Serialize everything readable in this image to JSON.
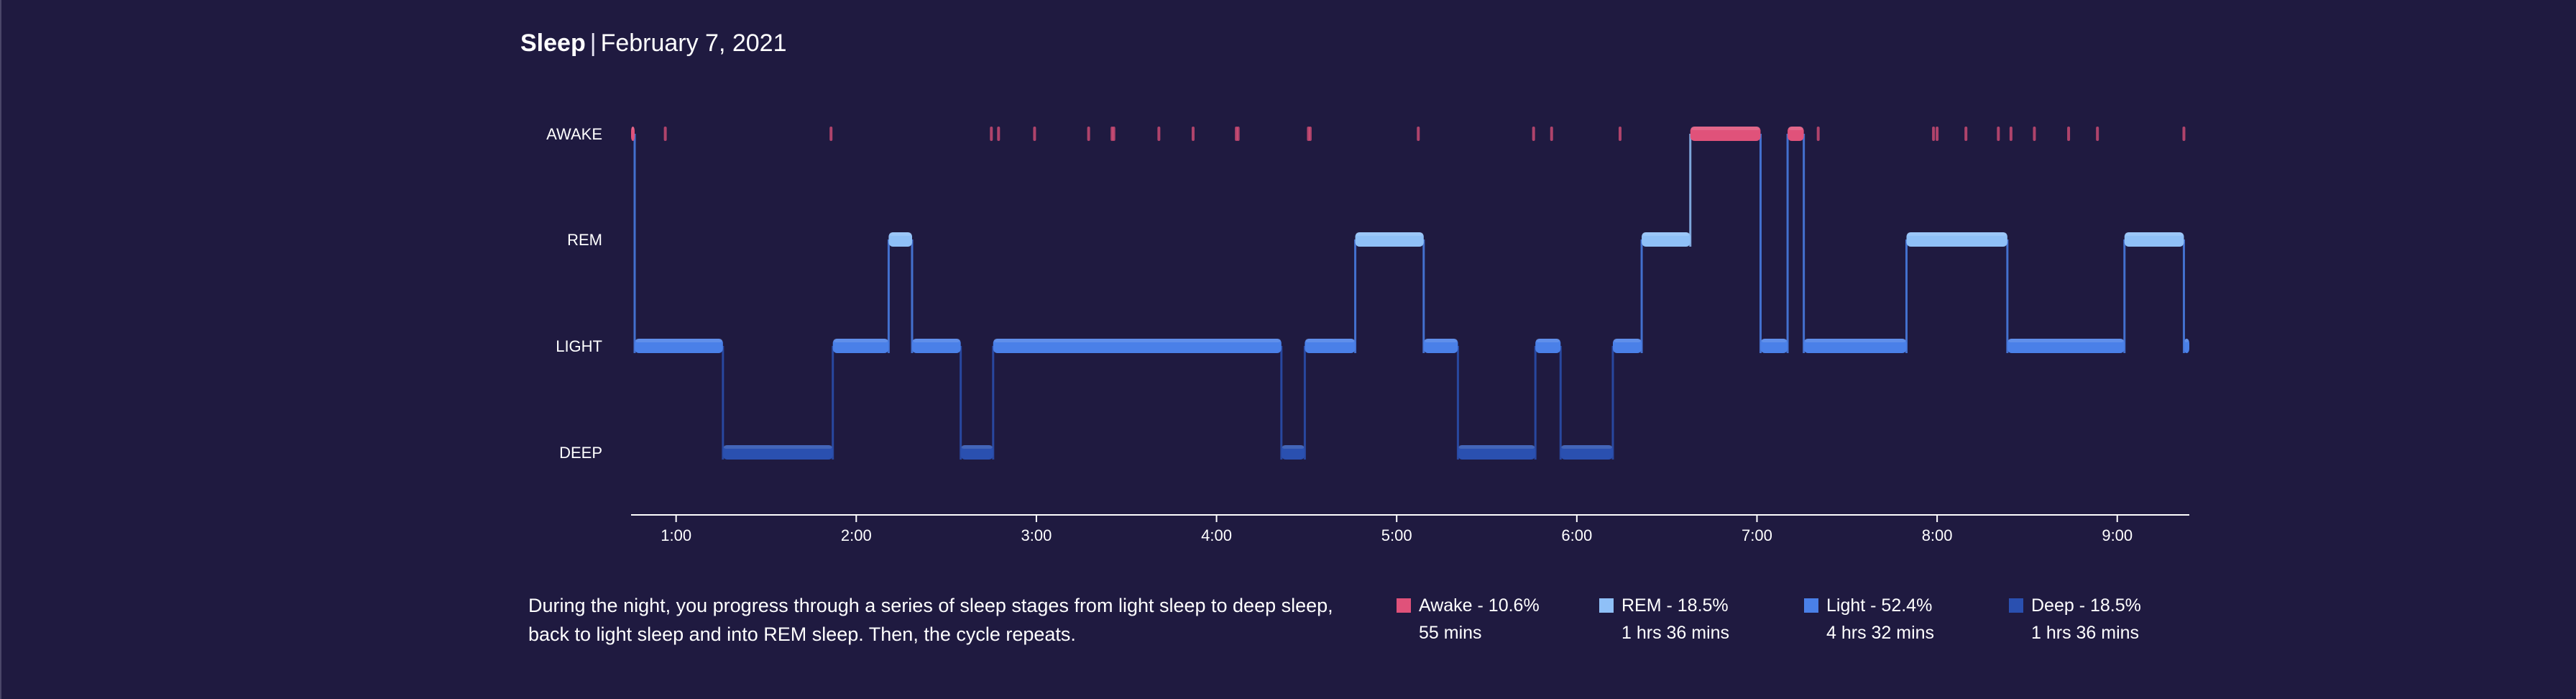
{
  "header": {
    "title": "Sleep",
    "separator": "|",
    "date": "February 7, 2021"
  },
  "description": "During the night, you progress through a series of sleep stages from light sleep to deep sleep, back to light sleep and into REM sleep. Then, the cycle repeats.",
  "legend": [
    {
      "label": "Awake - 10.6%",
      "duration": "55 mins",
      "color": "#e0527a"
    },
    {
      "label": "REM - 18.5%",
      "duration": "1 hrs 36 mins",
      "color": "#8fc0f7"
    },
    {
      "label": "Light - 52.4%",
      "duration": "4 hrs 32 mins",
      "color": "#4a80e8"
    },
    {
      "label": "Deep - 18.5%",
      "duration": "1 hrs 36 mins",
      "color": "#2a50b0"
    }
  ],
  "chart_data": {
    "type": "area",
    "x_unit": "hours",
    "xlim": [
      0.75,
      9.4
    ],
    "x_ticks": [
      "1:00",
      "2:00",
      "3:00",
      "4:00",
      "5:00",
      "6:00",
      "7:00",
      "8:00",
      "9:00"
    ],
    "x_tick_values": [
      1,
      2,
      3,
      4,
      5,
      6,
      7,
      8,
      9
    ],
    "stages": [
      "AWAKE",
      "REM",
      "LIGHT",
      "DEEP"
    ],
    "stage_colors": {
      "AWAKE": "#e0527a",
      "REM": "#8fc0f7",
      "LIGHT": "#4a80e8",
      "DEEP": "#2a50b0"
    },
    "segments": [
      {
        "stage": "AWAKE",
        "start": 0.75,
        "end": 0.77
      },
      {
        "stage": "LIGHT",
        "start": 0.77,
        "end": 1.26
      },
      {
        "stage": "DEEP",
        "start": 1.26,
        "end": 1.87
      },
      {
        "stage": "LIGHT",
        "start": 1.87,
        "end": 2.18
      },
      {
        "stage": "REM",
        "start": 2.18,
        "end": 2.31
      },
      {
        "stage": "LIGHT",
        "start": 2.31,
        "end": 2.58
      },
      {
        "stage": "DEEP",
        "start": 2.58,
        "end": 2.76
      },
      {
        "stage": "LIGHT",
        "start": 2.76,
        "end": 4.36
      },
      {
        "stage": "DEEP",
        "start": 4.36,
        "end": 4.49
      },
      {
        "stage": "LIGHT",
        "start": 4.49,
        "end": 4.77
      },
      {
        "stage": "REM",
        "start": 4.77,
        "end": 5.15
      },
      {
        "stage": "LIGHT",
        "start": 5.15,
        "end": 5.34
      },
      {
        "stage": "DEEP",
        "start": 5.34,
        "end": 5.77
      },
      {
        "stage": "LIGHT",
        "start": 5.77,
        "end": 5.91
      },
      {
        "stage": "DEEP",
        "start": 5.91,
        "end": 6.2
      },
      {
        "stage": "LIGHT",
        "start": 6.2,
        "end": 6.36
      },
      {
        "stage": "REM",
        "start": 6.36,
        "end": 6.63
      },
      {
        "stage": "AWAKE",
        "start": 6.63,
        "end": 7.02
      },
      {
        "stage": "LIGHT",
        "start": 7.02,
        "end": 7.17
      },
      {
        "stage": "AWAKE",
        "start": 7.17,
        "end": 7.26
      },
      {
        "stage": "LIGHT",
        "start": 7.26,
        "end": 7.83
      },
      {
        "stage": "REM",
        "start": 7.83,
        "end": 8.39
      },
      {
        "stage": "LIGHT",
        "start": 8.39,
        "end": 9.04
      },
      {
        "stage": "REM",
        "start": 9.04,
        "end": 9.37
      },
      {
        "stage": "LIGHT",
        "start": 9.37,
        "end": 9.4
      }
    ],
    "brief_awakenings": [
      0.94,
      1.86,
      2.75,
      2.79,
      2.99,
      3.29,
      3.42,
      3.43,
      3.68,
      3.87,
      4.11,
      4.12,
      4.51,
      4.52,
      5.12,
      5.76,
      5.86,
      6.24,
      7.34,
      7.98,
      8.0,
      8.16,
      8.34,
      8.41,
      8.54,
      8.73,
      8.89,
      9.37
    ]
  }
}
